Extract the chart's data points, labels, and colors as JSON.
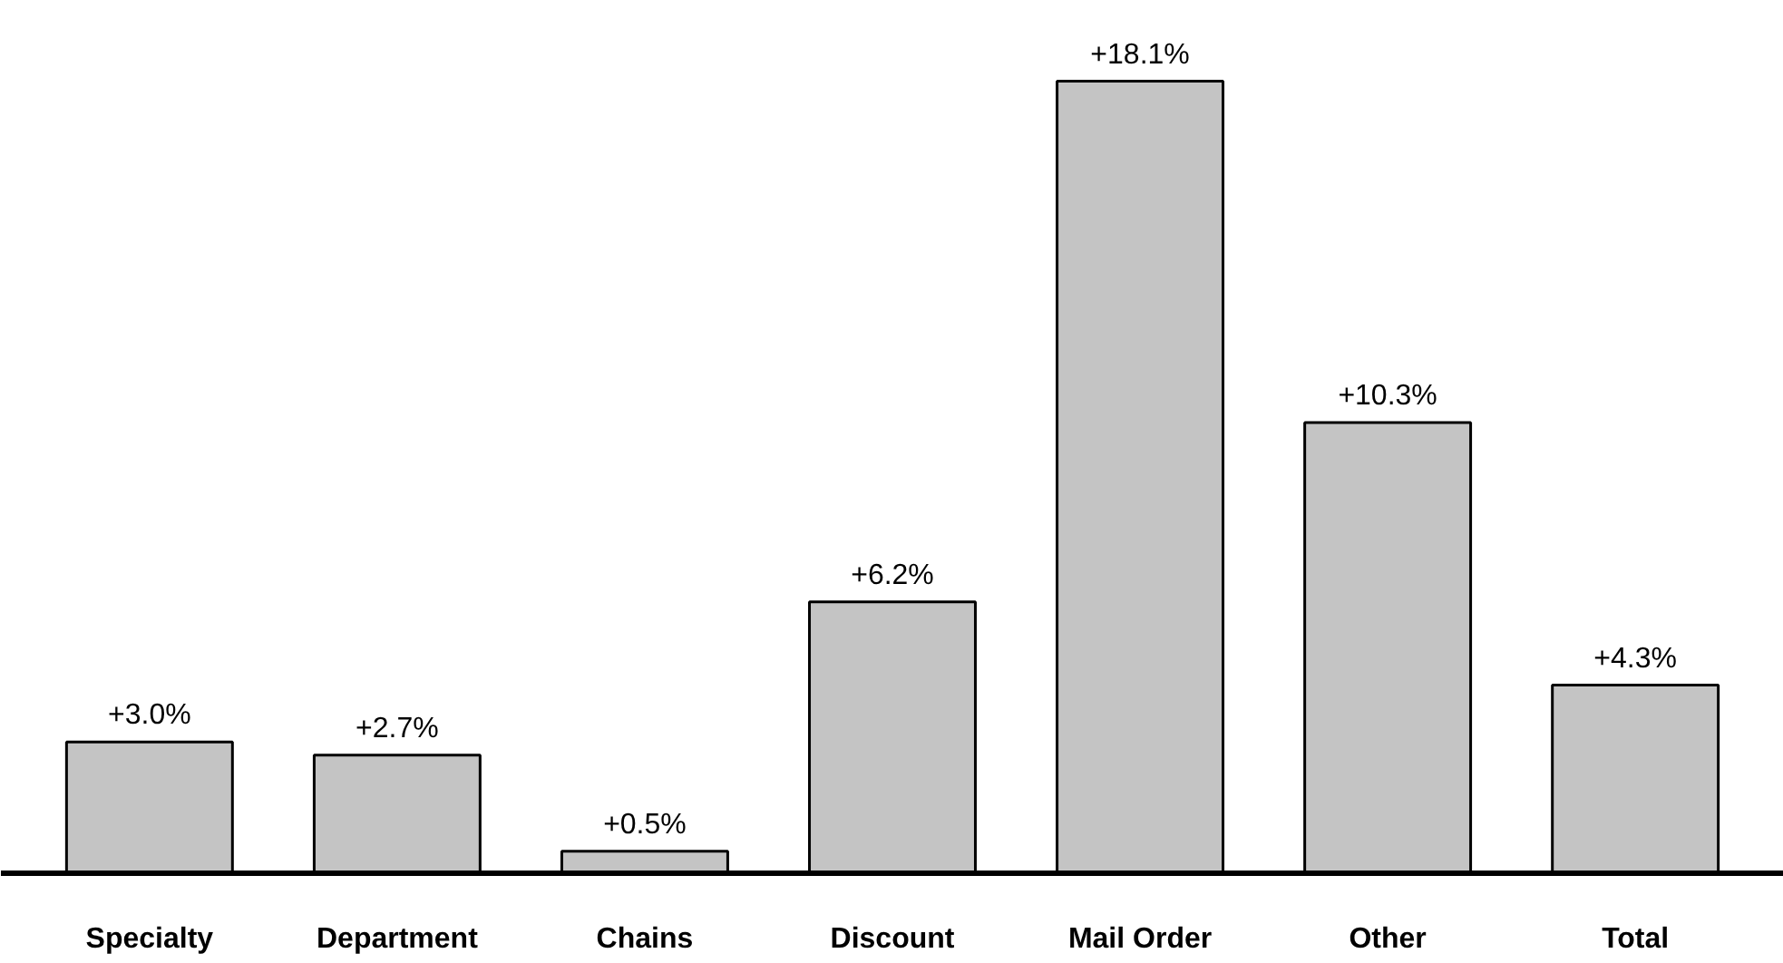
{
  "chart_data": {
    "type": "bar",
    "categories": [
      "Specialty",
      "Department",
      "Chains",
      "Discount",
      "Mail Order",
      "Other",
      "Total"
    ],
    "values": [
      3.0,
      2.7,
      0.5,
      6.2,
      18.1,
      10.3,
      4.3
    ],
    "value_labels": [
      "+3.0%",
      "+2.7%",
      "+0.5%",
      "+6.2%",
      "+18.1%",
      "+10.3%",
      "+4.3%"
    ],
    "color": "#c4c4c4",
    "grid": false
  }
}
